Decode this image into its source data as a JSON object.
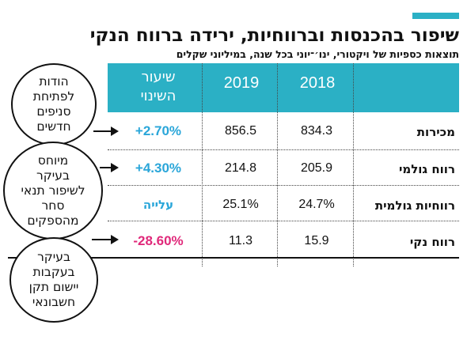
{
  "header": {
    "title": "שיפור בהכנסות וברווחיות, ירידה ברווח הנקי",
    "subtitle": "תוצאות כספיות של ויקטורי, ינו׳־יוני בכל שנה, במיליוני שקלים"
  },
  "columns": {
    "y2018": "2018",
    "y2019": "2019",
    "change": "שיעור\nהשינוי"
  },
  "rows": [
    {
      "label": "מכירות",
      "v2018": "834.3",
      "v2019": "856.5",
      "change": "+2.70%",
      "change_color": "#2aa6d9"
    },
    {
      "label": "רווח גולמי",
      "v2018": "205.9",
      "v2019": "214.8",
      "change": "+4.30%",
      "change_color": "#2aa6d9"
    },
    {
      "label": "רווחיות גולמית",
      "v2018": "24.7%",
      "v2019": "25.1%",
      "change": "עלייה",
      "change_color": "#2aa6d9"
    },
    {
      "label": "רווח נקי",
      "v2018": "15.9",
      "v2019": "11.3",
      "change": "-28.60%",
      "change_color": "#e0297a"
    }
  ],
  "callouts": [
    {
      "text": "הודות\nלפתיחת\nסניפים\nחדשים"
    },
    {
      "text": "מיוחס\nבעיקר\nלשיפור תנאי\nסחר\nמהספקים"
    },
    {
      "text": "בעיקר\nבעקבות\nיישום תקן\nחשבונאי"
    }
  ],
  "colors": {
    "accent": "#2bb0c5",
    "positive": "#2aa6d9",
    "negative": "#e0297a"
  },
  "chart_data": {
    "type": "table",
    "title": "שיפור בהכנסות וברווחיות, ירידה ברווח הנקי",
    "subtitle": "תוצאות כספיות של ויקטורי, ינו׳־יוני בכל שנה, במיליוני שקלים",
    "columns": [
      "2018",
      "2019",
      "שיעור השינוי"
    ],
    "rows": [
      {
        "label": "מכירות",
        "values": [
          834.3,
          856.5
        ],
        "change": "+2.70%"
      },
      {
        "label": "רווח גולמי",
        "values": [
          205.9,
          214.8
        ],
        "change": "+4.30%"
      },
      {
        "label": "רווחיות גולמית",
        "values": [
          "24.7%",
          "25.1%"
        ],
        "change": "עלייה"
      },
      {
        "label": "רווח נקי",
        "values": [
          15.9,
          11.3
        ],
        "change": "-28.60%"
      }
    ]
  }
}
